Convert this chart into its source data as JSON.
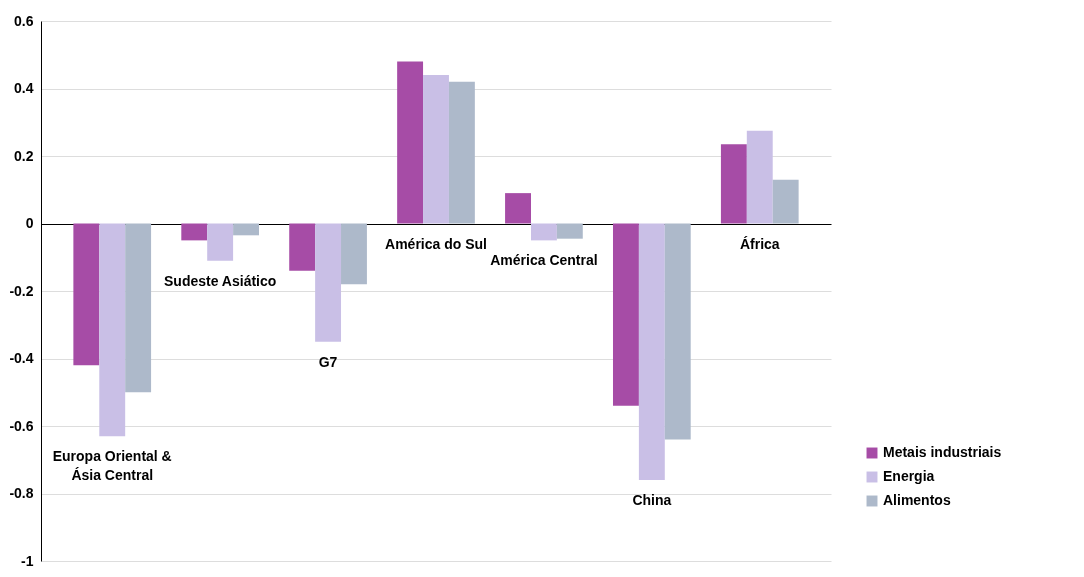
{
  "chart_data": {
    "type": "bar",
    "categories": [
      "Europa Oriental & Ásia Central",
      "Sudeste Asiático",
      "G7",
      "América do Sul",
      "América Central",
      "China",
      "África"
    ],
    "series": [
      {
        "name": "Metais industriais",
        "color": "#a64ca6",
        "values": [
          -0.42,
          -0.05,
          -0.14,
          0.48,
          0.09,
          -0.54,
          0.235
        ]
      },
      {
        "name": "Energia",
        "color": "#c9bfe6",
        "values": [
          -0.63,
          -0.11,
          -0.35,
          0.44,
          -0.05,
          -0.76,
          0.275
        ]
      },
      {
        "name": "Alimentos",
        "color": "#adb9ca",
        "values": [
          -0.5,
          -0.035,
          -0.18,
          0.42,
          -0.045,
          -0.64,
          0.13
        ]
      }
    ],
    "ylim": [
      -1,
      0.6
    ],
    "yticks": [
      -1,
      -0.8,
      -0.6,
      -0.4,
      -0.2,
      0,
      0.2,
      0.4,
      0.6
    ],
    "grid": "y",
    "legend": "bottom right"
  }
}
